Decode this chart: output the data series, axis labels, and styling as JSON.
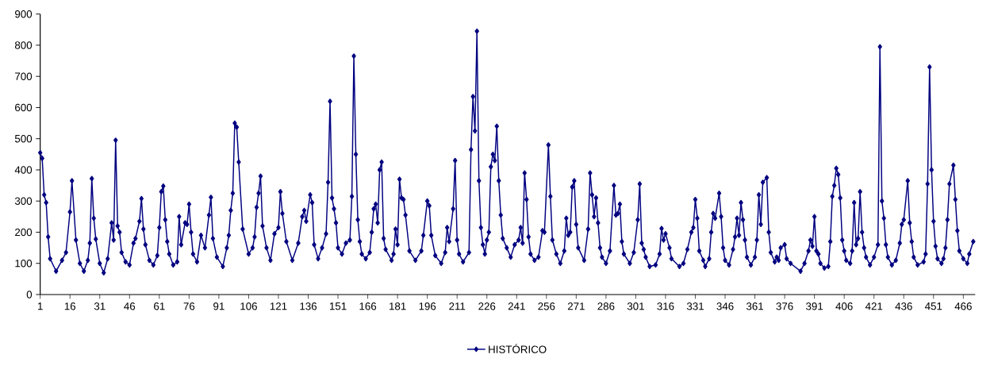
{
  "chart_data": {
    "type": "line",
    "marker": "diamond",
    "legend": "bottom",
    "xlim": [
      1,
      472
    ],
    "ylim": [
      0,
      900
    ],
    "xticks": [
      1,
      16,
      31,
      46,
      61,
      76,
      91,
      106,
      121,
      136,
      151,
      166,
      181,
      196,
      211,
      226,
      241,
      256,
      271,
      286,
      301,
      316,
      331,
      346,
      361,
      376,
      391,
      406,
      421,
      436,
      451,
      466
    ],
    "yticks": [
      0,
      100,
      200,
      300,
      400,
      500,
      600,
      700,
      800,
      900
    ],
    "x": [
      1,
      2,
      3,
      4,
      5,
      6,
      9,
      12,
      14,
      16,
      17,
      19,
      21,
      23,
      25,
      26,
      27,
      28,
      29,
      31,
      33,
      35,
      37,
      38,
      39,
      40,
      41,
      42,
      44,
      46,
      48,
      49,
      51,
      52,
      53,
      54,
      56,
      58,
      60,
      61,
      62,
      63,
      64,
      65,
      66,
      68,
      70,
      71,
      72,
      74,
      75,
      76,
      77,
      78,
      80,
      82,
      84,
      86,
      87,
      88,
      90,
      93,
      95,
      96,
      97,
      98,
      99,
      100,
      101,
      103,
      106,
      108,
      109,
      110,
      111,
      112,
      113,
      115,
      117,
      119,
      121,
      122,
      123,
      125,
      128,
      131,
      133,
      134,
      135,
      137,
      138,
      139,
      141,
      143,
      145,
      146,
      147,
      148,
      149,
      150,
      151,
      153,
      155,
      157,
      158,
      159,
      160,
      161,
      162,
      163,
      165,
      167,
      168,
      169,
      170,
      171,
      172,
      173,
      174,
      175,
      178,
      179,
      180,
      181,
      182,
      183,
      184,
      185,
      187,
      190,
      193,
      194,
      196,
      197,
      198,
      200,
      203,
      205,
      206,
      207,
      209,
      210,
      211,
      212,
      214,
      217,
      218,
      219,
      220,
      221,
      222,
      223,
      224,
      225,
      226,
      227,
      228,
      229,
      230,
      231,
      232,
      233,
      234,
      236,
      238,
      240,
      242,
      243,
      244,
      245,
      246,
      247,
      248,
      250,
      252,
      254,
      255,
      257,
      258,
      259,
      261,
      263,
      265,
      266,
      267,
      268,
      269,
      270,
      271,
      272,
      275,
      277,
      278,
      279,
      280,
      281,
      282,
      283,
      284,
      286,
      288,
      290,
      291,
      292,
      293,
      294,
      295,
      298,
      300,
      302,
      303,
      304,
      305,
      306,
      308,
      311,
      313,
      314,
      315,
      316,
      318,
      319,
      323,
      325,
      327,
      329,
      330,
      331,
      332,
      333,
      335,
      336,
      338,
      339,
      340,
      341,
      343,
      344,
      345,
      346,
      348,
      350,
      351,
      352,
      353,
      354,
      355,
      356,
      357,
      359,
      361,
      362,
      363,
      364,
      365,
      367,
      368,
      369,
      371,
      372,
      373,
      374,
      376,
      377,
      379,
      384,
      386,
      388,
      389,
      390,
      391,
      392,
      393,
      394,
      396,
      398,
      399,
      400,
      401,
      402,
      403,
      404,
      405,
      406,
      407,
      409,
      410,
      411,
      412,
      413,
      414,
      415,
      416,
      417,
      419,
      421,
      423,
      424,
      425,
      426,
      427,
      428,
      430,
      432,
      434,
      435,
      436,
      438,
      439,
      440,
      441,
      443,
      446,
      447,
      448,
      449,
      450,
      451,
      452,
      453,
      455,
      456,
      457,
      458,
      459,
      461,
      462,
      463,
      464,
      466,
      468,
      469,
      471
    ],
    "series": [
      {
        "name": "HISTÓRICO",
        "color": "#000080",
        "values": [
          455,
          437,
          320,
          295,
          185,
          115,
          75,
          110,
          135,
          265,
          365,
          175,
          100,
          75,
          110,
          165,
          372,
          245,
          178,
          100,
          70,
          115,
          230,
          175,
          495,
          220,
          200,
          135,
          105,
          95,
          165,
          180,
          235,
          308,
          210,
          160,
          110,
          95,
          125,
          215,
          330,
          348,
          240,
          170,
          130,
          95,
          105,
          250,
          160,
          230,
          225,
          290,
          200,
          130,
          105,
          190,
          150,
          255,
          312,
          180,
          120,
          90,
          150,
          190,
          270,
          325,
          550,
          537,
          425,
          210,
          130,
          150,
          185,
          280,
          325,
          380,
          220,
          150,
          110,
          195,
          215,
          330,
          260,
          170,
          110,
          165,
          250,
          270,
          235,
          320,
          295,
          160,
          115,
          150,
          195,
          360,
          620,
          310,
          275,
          230,
          150,
          130,
          165,
          175,
          315,
          765,
          450,
          240,
          170,
          130,
          115,
          135,
          200,
          275,
          290,
          230,
          400,
          425,
          180,
          145,
          110,
          130,
          210,
          160,
          370,
          310,
          305,
          255,
          140,
          110,
          140,
          190,
          300,
          285,
          190,
          125,
          100,
          135,
          215,
          170,
          275,
          430,
          175,
          130,
          105,
          135,
          465,
          635,
          525,
          845,
          365,
          215,
          160,
          130,
          175,
          200,
          410,
          450,
          430,
          540,
          365,
          255,
          180,
          150,
          120,
          160,
          175,
          215,
          165,
          390,
          305,
          185,
          130,
          110,
          120,
          205,
          200,
          480,
          315,
          175,
          130,
          100,
          140,
          245,
          190,
          200,
          345,
          365,
          225,
          150,
          110,
          210,
          390,
          320,
          250,
          310,
          230,
          150,
          120,
          100,
          140,
          350,
          255,
          260,
          290,
          170,
          130,
          100,
          135,
          240,
          355,
          165,
          145,
          120,
          90,
          95,
          130,
          212,
          175,
          195,
          150,
          115,
          90,
          100,
          145,
          200,
          215,
          305,
          245,
          140,
          110,
          90,
          115,
          200,
          260,
          245,
          325,
          250,
          150,
          110,
          95,
          145,
          185,
          245,
          190,
          295,
          240,
          175,
          120,
          95,
          120,
          175,
          320,
          225,
          360,
          375,
          200,
          135,
          105,
          120,
          110,
          150,
          160,
          115,
          100,
          75,
          100,
          140,
          175,
          155,
          250,
          140,
          130,
          100,
          85,
          90,
          170,
          315,
          350,
          405,
          385,
          310,
          175,
          140,
          110,
          100,
          140,
          295,
          160,
          180,
          330,
          200,
          150,
          120,
          95,
          120,
          160,
          795,
          300,
          245,
          160,
          120,
          95,
          110,
          165,
          225,
          240,
          365,
          230,
          170,
          120,
          95,
          105,
          130,
          355,
          730,
          400,
          235,
          155,
          115,
          100,
          115,
          150,
          240,
          355,
          415,
          305,
          205,
          140,
          115,
          100,
          130,
          170
        ]
      }
    ]
  }
}
